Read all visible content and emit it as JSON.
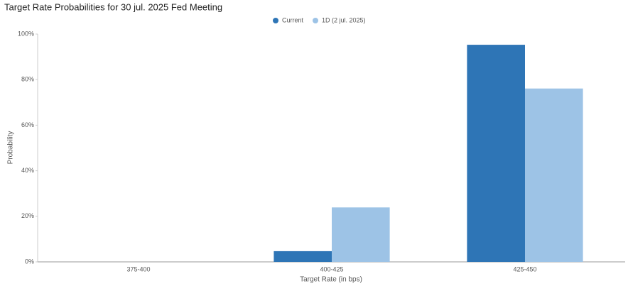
{
  "chart_data": {
    "type": "bar",
    "title": "Target Rate Probabilities for 30 jul. 2025 Fed Meeting",
    "xlabel": "Target Rate (in bps)",
    "ylabel": "Probability",
    "categories": [
      "375-400",
      "400-425",
      "425-450"
    ],
    "series": [
      {
        "name": "Current",
        "color": "#2e75b6",
        "values": [
          0,
          4.7,
          95.3
        ]
      },
      {
        "name": "1D (2 jul. 2025)",
        "color": "#9dc3e6",
        "values": [
          0,
          23.9,
          76.1
        ]
      }
    ],
    "ylim": [
      0,
      100
    ],
    "yticks": [
      {
        "value": 0,
        "label": "0%"
      },
      {
        "value": 20,
        "label": "20%"
      },
      {
        "value": 40,
        "label": "40%"
      },
      {
        "value": 60,
        "label": "60%"
      },
      {
        "value": 80,
        "label": "80%"
      },
      {
        "value": 100,
        "label": "100%"
      }
    ],
    "grid": false
  }
}
